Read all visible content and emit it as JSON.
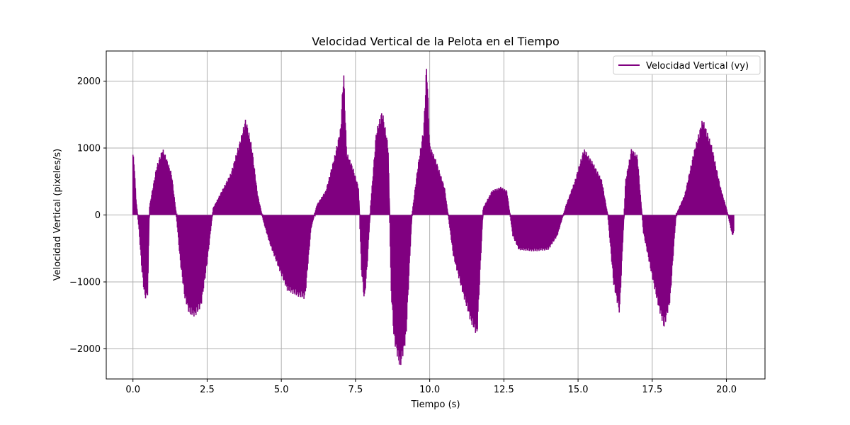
{
  "chart_data": {
    "type": "line",
    "title": "Velocidad Vertical de la Pelota en el Tiempo",
    "xlabel": "Tiempo (s)",
    "ylabel": "Velocidad Vertical (pixeles/s)",
    "xlim": [
      -0.9,
      21.3
    ],
    "ylim": [
      -2450,
      2450
    ],
    "x_ticks": [
      0.0,
      2.5,
      5.0,
      7.5,
      10.0,
      12.5,
      15.0,
      17.5,
      20.0
    ],
    "x_tick_labels": [
      "0.0",
      "2.5",
      "5.0",
      "7.5",
      "10.0",
      "12.5",
      "15.0",
      "17.5",
      "20.0"
    ],
    "y_ticks": [
      -2000,
      -1000,
      0,
      1000,
      2000
    ],
    "y_tick_labels": [
      "−2000",
      "−1000",
      "0",
      "1000",
      "2000"
    ],
    "grid": true,
    "legend_position": "top-right",
    "color": "#800080",
    "series": [
      {
        "name": "Velocidad Vertical (vy)",
        "style": "alternating samples between 0 and the envelope value (dense oscillation)",
        "envelope": {
          "x": [
            0.0,
            0.05,
            0.1,
            0.2,
            0.3,
            0.4,
            0.5,
            0.55,
            0.65,
            0.8,
            1.0,
            1.1,
            1.3,
            1.45,
            1.6,
            1.75,
            1.9,
            2.1,
            2.3,
            2.5,
            2.7,
            3.0,
            3.3,
            3.6,
            3.8,
            4.0,
            4.2,
            4.4,
            4.6,
            4.9,
            5.2,
            5.5,
            5.8,
            6.0,
            6.2,
            6.5,
            6.8,
            7.0,
            7.1,
            7.2,
            7.4,
            7.6,
            7.7,
            7.8,
            7.9,
            8.0,
            8.2,
            8.4,
            8.6,
            8.7,
            8.8,
            9.0,
            9.2,
            9.4,
            9.6,
            9.8,
            9.9,
            10.0,
            10.2,
            10.5,
            10.8,
            11.1,
            11.4,
            11.6,
            11.8,
            12.1,
            12.4,
            12.6,
            12.8,
            13.0,
            13.5,
            14.0,
            14.3,
            14.6,
            14.9,
            15.2,
            15.5,
            15.8,
            16.0,
            16.2,
            16.4,
            16.6,
            16.8,
            17.0,
            17.2,
            17.5,
            17.7,
            17.9,
            18.1,
            18.3,
            18.6,
            18.9,
            19.2,
            19.5,
            19.8,
            20.0,
            20.2,
            20.25
          ],
          "y": [
            900,
            700,
            250,
            -200,
            -800,
            -1200,
            -1150,
            100,
            350,
            700,
            950,
            850,
            600,
            50,
            -700,
            -1200,
            -1420,
            -1450,
            -1300,
            -700,
            100,
            350,
            600,
            1050,
            1380,
            1000,
            300,
            -100,
            -400,
            -750,
            -1080,
            -1150,
            -1200,
            -200,
            150,
            350,
            850,
            1250,
            2100,
            900,
            700,
            400,
            -800,
            -1250,
            -700,
            100,
            1200,
            1500,
            1000,
            -1100,
            -1800,
            -2200,
            -1800,
            0,
            700,
            1250,
            2220,
            1000,
            800,
            400,
            -600,
            -1100,
            -1550,
            -1730,
            100,
            350,
            400,
            350,
            -300,
            -500,
            -520,
            -500,
            -300,
            150,
            500,
            950,
            750,
            500,
            0,
            -1000,
            -1420,
            500,
            950,
            850,
            -250,
            -900,
            -1300,
            -1620,
            -1250,
            0,
            300,
            900,
            1380,
            1000,
            400,
            100,
            -300,
            -250
          ]
        }
      }
    ]
  }
}
